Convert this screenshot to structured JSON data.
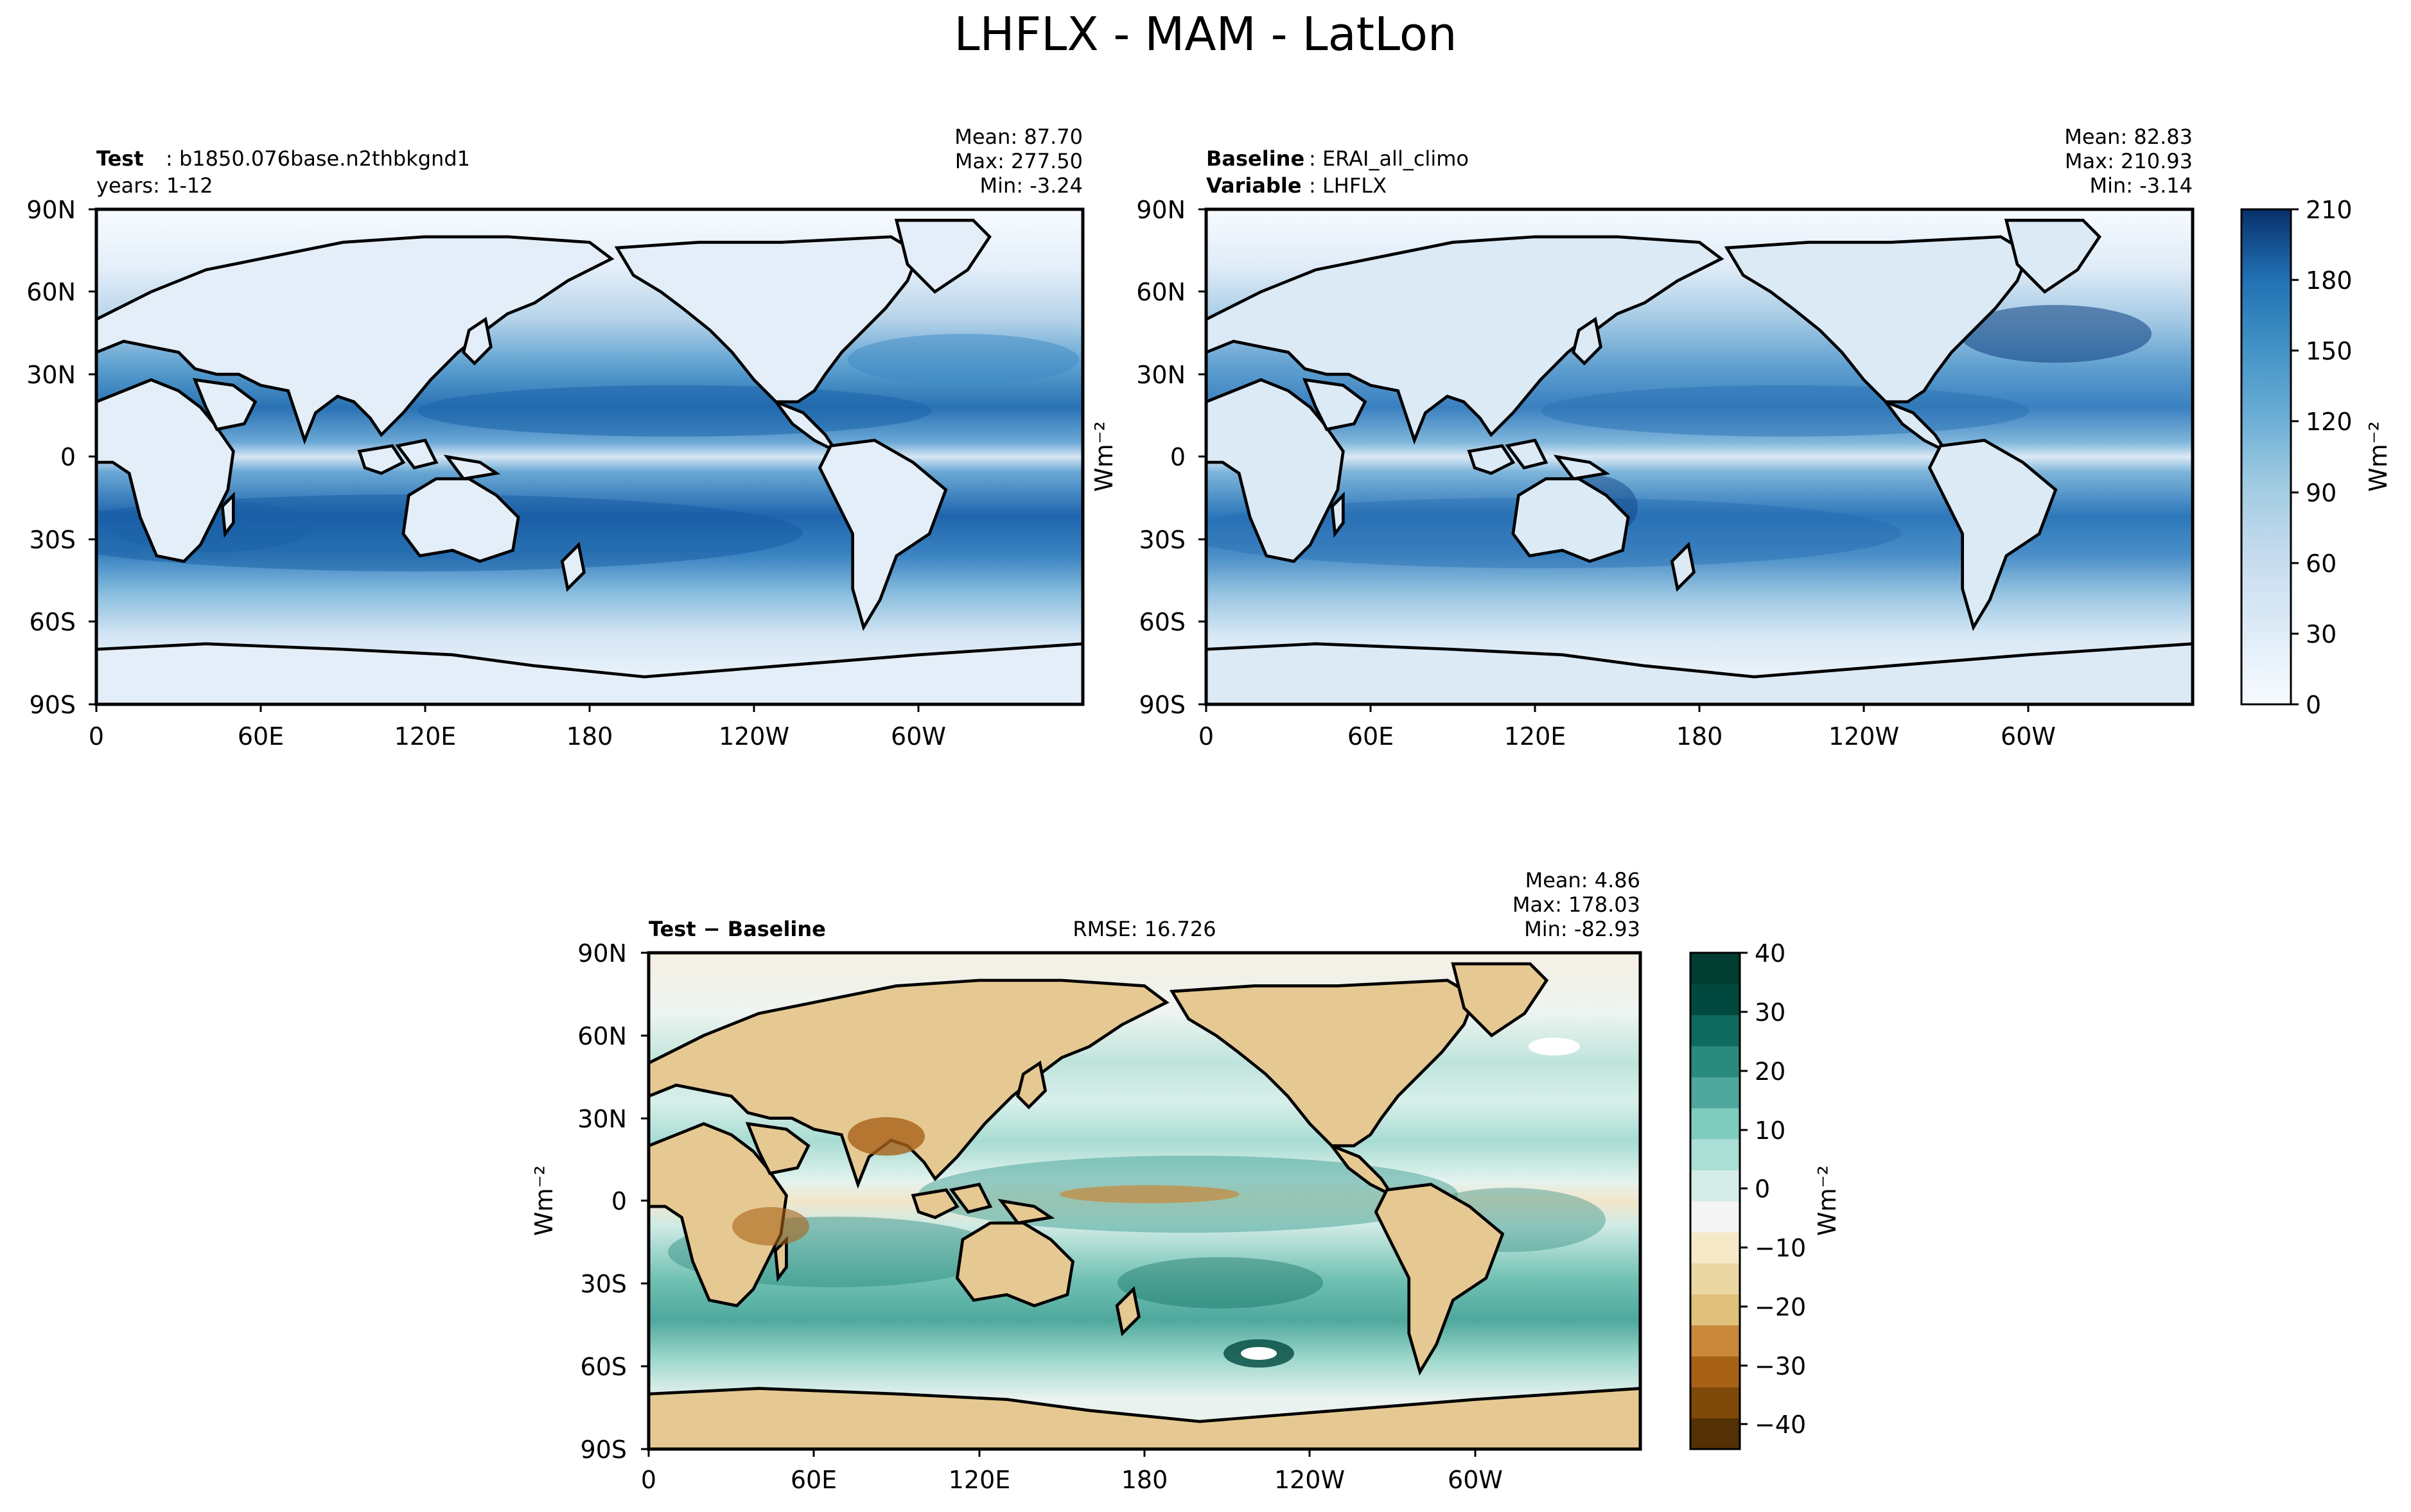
{
  "figure": {
    "title": "LHFLX - MAM - LatLon"
  },
  "colors": {
    "coast": "#000000",
    "land_test": "#f1f6fb",
    "blues": [
      "#f7fbff",
      "#eaf3fb",
      "#deebf7",
      "#d0e3f3",
      "#c6dbef",
      "#b2d2e8",
      "#9ecae1",
      "#84bcdb",
      "#6baed6",
      "#57a0ce",
      "#4292c6",
      "#3282be",
      "#2171b5",
      "#1461a8",
      "#08519c",
      "#083e81",
      "#08306b"
    ],
    "brbg": [
      "#543005",
      "#7f4909",
      "#a86218",
      "#c8873b",
      "#dfc17c",
      "#ebd7a4",
      "#f5e9c8",
      "#f5f5f5",
      "#d5ede8",
      "#aadfd6",
      "#7fccbf",
      "#4fa89d",
      "#2a8a7e",
      "#0f6b5f",
      "#01493e",
      "#003c30"
    ]
  },
  "panels": {
    "test": {
      "label_key": "Test",
      "label_value": "b1850.076base.n2thbkgnd1",
      "line2": "years: 1-12",
      "mean": "Mean: 87.70",
      "max": "Max: 277.50",
      "min": "Min: -3.24"
    },
    "baseline": {
      "label_key": "Baseline",
      "label_value": "ERAI_all_climo",
      "line2_key": "Variable",
      "line2_value": "LHFLX",
      "mean": "Mean: 82.83",
      "max": "Max: 210.93",
      "min": "Min: -3.14"
    },
    "diff": {
      "label": "Test − Baseline",
      "rmse": "RMSE: 16.726",
      "mean": "Mean:  4.86",
      "max": "Max: 178.03",
      "min": "Min: -82.93"
    },
    "ylabel": "Wm⁻²"
  },
  "chart_data": [
    {
      "type": "heatmap",
      "title": "Test",
      "xlabel": "",
      "ylabel": "",
      "x_ticks": [
        "0",
        "60E",
        "120E",
        "180",
        "120W",
        "60W"
      ],
      "y_ticks": [
        "90N",
        "60N",
        "30N",
        "0",
        "30S",
        "60S",
        "90S"
      ],
      "xlim": [
        0,
        360
      ],
      "ylim": [
        -90,
        90
      ],
      "summary": {
        "mean": 87.7,
        "max": 277.5,
        "min": -3.24
      }
    },
    {
      "type": "heatmap",
      "title": "Baseline",
      "xlabel": "",
      "ylabel": "",
      "x_ticks": [
        "0",
        "60E",
        "120E",
        "180",
        "120W",
        "60W"
      ],
      "y_ticks": [
        "90N",
        "60N",
        "30N",
        "0",
        "30S",
        "60S",
        "90S"
      ],
      "xlim": [
        0,
        360
      ],
      "ylim": [
        -90,
        90
      ],
      "summary": {
        "mean": 82.83,
        "max": 210.93,
        "min": -3.14
      },
      "colorbar": {
        "ticks": [
          "0",
          "30",
          "60",
          "90",
          "120",
          "150",
          "180",
          "210"
        ],
        "range": [
          0,
          210
        ],
        "label": "Wm⁻²"
      }
    },
    {
      "type": "heatmap",
      "title": "Test − Baseline",
      "xlabel": "",
      "ylabel": "",
      "x_ticks": [
        "0",
        "60E",
        "120E",
        "180",
        "120W",
        "60W"
      ],
      "y_ticks": [
        "90N",
        "60N",
        "30N",
        "0",
        "30S",
        "60S",
        "90S"
      ],
      "xlim": [
        0,
        360
      ],
      "ylim": [
        -90,
        90
      ],
      "summary": {
        "mean": 4.86,
        "max": 178.03,
        "min": -82.93,
        "rmse": 16.726
      },
      "colorbar": {
        "ticks": [
          "−40",
          "−30",
          "−20",
          "−10",
          "0",
          "10",
          "20",
          "30",
          "40"
        ],
        "range": [
          -45,
          45
        ],
        "label": "Wm⁻²"
      }
    }
  ]
}
